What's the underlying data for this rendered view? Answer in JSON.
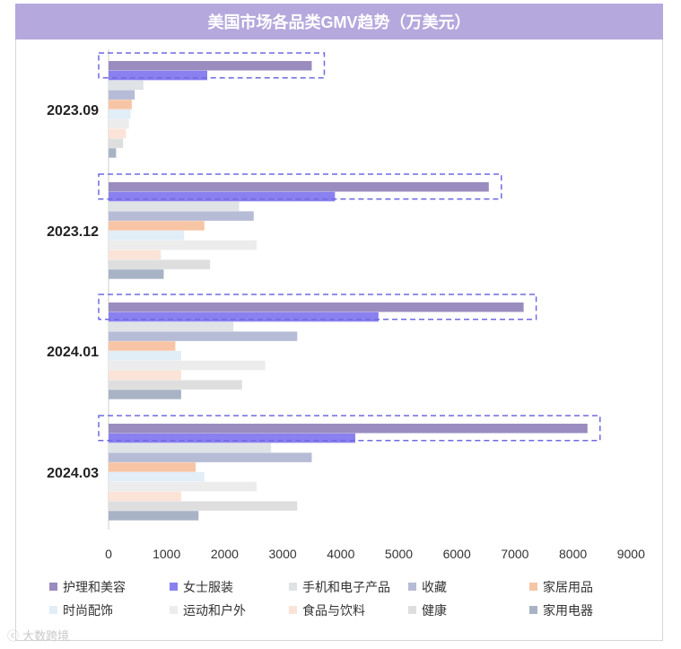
{
  "chart_data": {
    "type": "bar",
    "orientation": "horizontal",
    "title": "美国市场各品类GMV趋势（万美元）",
    "xlabel": "",
    "ylabel": "",
    "xlim": [
      0,
      9000
    ],
    "xticks": [
      0,
      1000,
      2000,
      3000,
      4000,
      5000,
      6000,
      7000,
      8000,
      9000
    ],
    "grid": false,
    "legend_position": "bottom",
    "categories": [
      "2023.09",
      "2023.12",
      "2024.01",
      "2024.03"
    ],
    "highlight_series": "护理和美容",
    "series": [
      {
        "name": "护理和美容",
        "color": "#9a8cbf",
        "values": [
          3500,
          6550,
          7150,
          8250
        ]
      },
      {
        "name": "女士服装",
        "color": "#8a80f0",
        "values": [
          1700,
          3900,
          4650,
          4250
        ]
      },
      {
        "name": "手机和电子产品",
        "color": "#dfe3e6",
        "values": [
          600,
          2250,
          2150,
          2800
        ]
      },
      {
        "name": "收藏",
        "color": "#b6bbd6",
        "values": [
          450,
          2500,
          3250,
          3500
        ]
      },
      {
        "name": "家居用品",
        "color": "#f7c5a5",
        "values": [
          400,
          1650,
          1150,
          1500
        ]
      },
      {
        "name": "时尚配饰",
        "color": "#e1edf7",
        "values": [
          380,
          1300,
          1250,
          1650
        ]
      },
      {
        "name": "运动和户外",
        "color": "#ececec",
        "values": [
          350,
          2550,
          2700,
          2550
        ]
      },
      {
        "name": "食品与饮料",
        "color": "#fbe3d8",
        "values": [
          300,
          900,
          1250,
          1250
        ]
      },
      {
        "name": "健康",
        "color": "#dedede",
        "values": [
          250,
          1750,
          2300,
          3250
        ]
      },
      {
        "name": "家用电器",
        "color": "#a9b3c6",
        "values": [
          130,
          950,
          1250,
          1550
        ]
      }
    ]
  },
  "watermark": "大数跨境"
}
